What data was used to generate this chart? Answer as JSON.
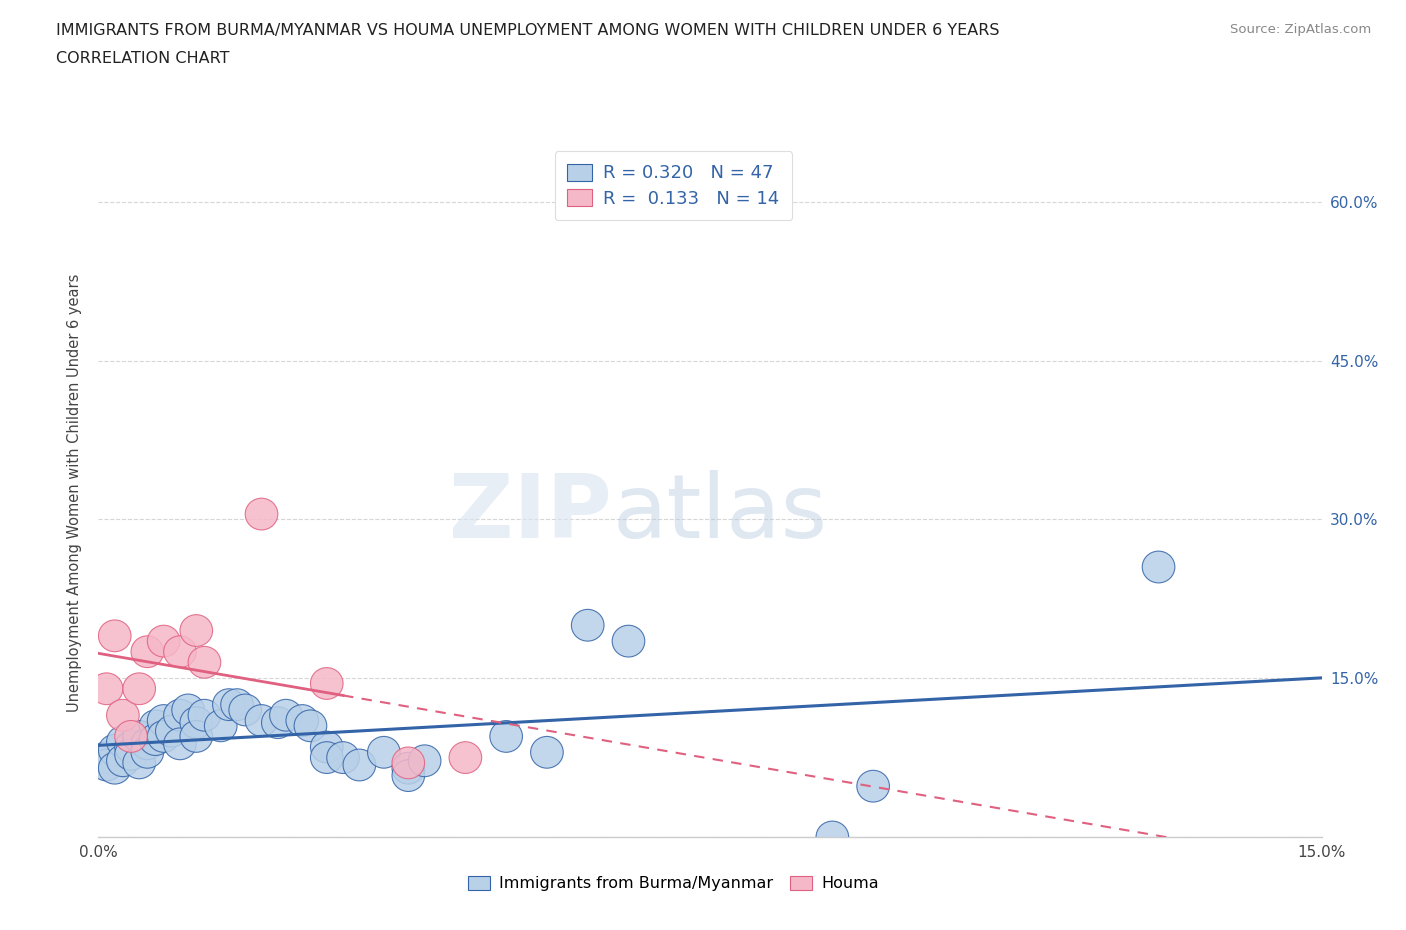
{
  "title_line1": "IMMIGRANTS FROM BURMA/MYANMAR VS HOUMA UNEMPLOYMENT AMONG WOMEN WITH CHILDREN UNDER 6 YEARS",
  "title_line2": "CORRELATION CHART",
  "source_text": "Source: ZipAtlas.com",
  "ylabel": "Unemployment Among Women with Children Under 6 years",
  "xlim": [
    0.0,
    0.15
  ],
  "ylim": [
    0.0,
    0.65
  ],
  "xticks": [
    0.0,
    0.025,
    0.05,
    0.075,
    0.1,
    0.125,
    0.15
  ],
  "xtick_labels": [
    "0.0%",
    "",
    "",
    "",
    "",
    "",
    "15.0%"
  ],
  "yticks": [
    0.0,
    0.15,
    0.3,
    0.45,
    0.6
  ],
  "ytick_labels": [
    "",
    "15.0%",
    "30.0%",
    "45.0%",
    "60.0%"
  ],
  "blue_R": 0.32,
  "blue_N": 47,
  "pink_R": 0.133,
  "pink_N": 14,
  "blue_color": "#b8d0e8",
  "pink_color": "#f5b8c8",
  "blue_line_color": "#3464a8",
  "pink_line_color": "#e06080",
  "blue_scatter": [
    [
      0.001,
      0.075
    ],
    [
      0.001,
      0.068
    ],
    [
      0.002,
      0.082
    ],
    [
      0.002,
      0.065
    ],
    [
      0.003,
      0.09
    ],
    [
      0.003,
      0.072
    ],
    [
      0.004,
      0.085
    ],
    [
      0.004,
      0.078
    ],
    [
      0.005,
      0.095
    ],
    [
      0.005,
      0.07
    ],
    [
      0.006,
      0.088
    ],
    [
      0.006,
      0.08
    ],
    [
      0.007,
      0.105
    ],
    [
      0.007,
      0.092
    ],
    [
      0.008,
      0.11
    ],
    [
      0.008,
      0.095
    ],
    [
      0.009,
      0.1
    ],
    [
      0.01,
      0.115
    ],
    [
      0.01,
      0.088
    ],
    [
      0.011,
      0.12
    ],
    [
      0.012,
      0.108
    ],
    [
      0.012,
      0.095
    ],
    [
      0.013,
      0.115
    ],
    [
      0.015,
      0.105
    ],
    [
      0.016,
      0.125
    ],
    [
      0.017,
      0.125
    ],
    [
      0.018,
      0.12
    ],
    [
      0.02,
      0.11
    ],
    [
      0.022,
      0.108
    ],
    [
      0.023,
      0.115
    ],
    [
      0.025,
      0.11
    ],
    [
      0.026,
      0.105
    ],
    [
      0.028,
      0.085
    ],
    [
      0.028,
      0.075
    ],
    [
      0.03,
      0.075
    ],
    [
      0.032,
      0.068
    ],
    [
      0.035,
      0.08
    ],
    [
      0.038,
      0.065
    ],
    [
      0.038,
      0.058
    ],
    [
      0.04,
      0.072
    ],
    [
      0.05,
      0.095
    ],
    [
      0.055,
      0.08
    ],
    [
      0.06,
      0.2
    ],
    [
      0.065,
      0.185
    ],
    [
      0.09,
      0.0
    ],
    [
      0.095,
      0.048
    ],
    [
      0.13,
      0.255
    ]
  ],
  "pink_scatter": [
    [
      0.001,
      0.14
    ],
    [
      0.002,
      0.19
    ],
    [
      0.003,
      0.115
    ],
    [
      0.004,
      0.095
    ],
    [
      0.005,
      0.14
    ],
    [
      0.006,
      0.175
    ],
    [
      0.008,
      0.185
    ],
    [
      0.01,
      0.175
    ],
    [
      0.012,
      0.195
    ],
    [
      0.013,
      0.165
    ],
    [
      0.02,
      0.305
    ],
    [
      0.028,
      0.145
    ],
    [
      0.038,
      0.07
    ],
    [
      0.045,
      0.075
    ]
  ],
  "watermark_zip": "ZIP",
  "watermark_atlas": "atlas",
  "legend_label_blue": "Immigrants from Burma/Myanmar",
  "legend_label_pink": "Houma",
  "bg_color": "#ffffff",
  "grid_color": "#bbbbbb"
}
